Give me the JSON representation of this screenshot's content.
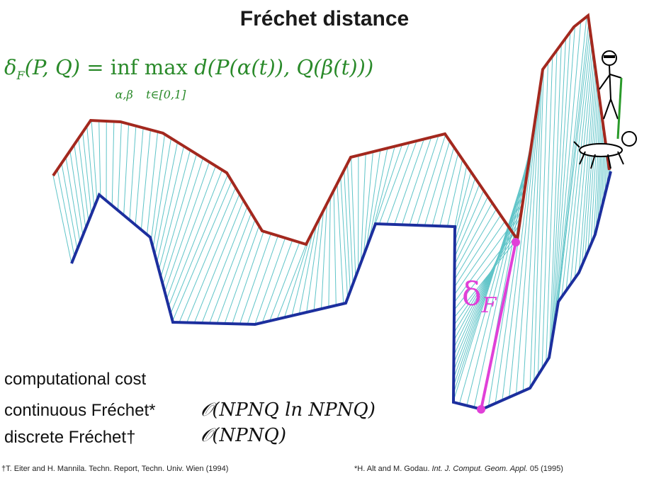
{
  "title": "Fréchet distance",
  "formula": {
    "lhs": "δF(P, Q) = inf max d(P(α(t)), Q(β(t)))",
    "inf_sub": "α,β",
    "max_sub": "t∈[0,1]"
  },
  "delta_label": "δF",
  "cost": {
    "heading": "computational cost",
    "continuous_label": "continuous Fréchet*",
    "continuous_value": "𝒪(NPNQ ln NPNQ)",
    "discrete_label": "discrete Fréchet†",
    "discrete_value": "𝒪(NPNQ)"
  },
  "refs": {
    "left": "†T. Eiter and H. Mannila. Techn. Report, Techn. Univ. Wien (1994)",
    "right_prefix": "*H. Alt and M. Godau. ",
    "right_journal": "Int. J. Comput. Geom. Appl.",
    "right_suffix": " 05 (1995)"
  },
  "colors": {
    "curve_p": "#a3281e",
    "curve_q": "#1c2f9e",
    "leash_lines": "#5fc4c8",
    "delta": "#e040d8",
    "formula": "#2a8a2a"
  }
}
